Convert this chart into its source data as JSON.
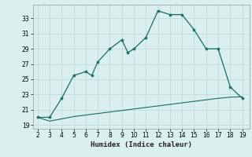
{
  "xlabel": "Humidex (Indice chaleur)",
  "x_curve1": [
    2,
    3,
    4,
    5,
    6,
    6.5,
    7,
    8,
    9,
    9.5,
    10,
    11,
    12,
    13,
    14,
    15,
    16,
    17,
    18,
    19
  ],
  "y_curve1": [
    20.0,
    20.0,
    22.5,
    25.5,
    26.0,
    25.5,
    27.3,
    29.0,
    30.2,
    28.5,
    29.0,
    30.5,
    34.0,
    33.5,
    33.5,
    31.5,
    29.0,
    29.0,
    24.0,
    22.5
  ],
  "x_curve2": [
    2,
    3,
    4,
    5,
    6,
    7,
    8,
    9,
    10,
    11,
    12,
    13,
    14,
    15,
    16,
    17,
    18,
    19
  ],
  "y_curve2": [
    20.0,
    19.5,
    19.8,
    20.1,
    20.3,
    20.5,
    20.7,
    20.9,
    21.1,
    21.3,
    21.5,
    21.7,
    21.9,
    22.1,
    22.3,
    22.5,
    22.65,
    22.7
  ],
  "line_color": "#1a6b60",
  "bg_color": "#daf0ee",
  "grid_color": "#b8d8d4",
  "yticks": [
    19,
    21,
    23,
    25,
    27,
    29,
    31,
    33
  ],
  "xticks": [
    2,
    3,
    4,
    5,
    6,
    7,
    8,
    9,
    10,
    11,
    12,
    13,
    14,
    15,
    16,
    17,
    18,
    19
  ],
  "ylim": [
    18.5,
    34.8
  ],
  "xlim": [
    1.6,
    19.6
  ]
}
